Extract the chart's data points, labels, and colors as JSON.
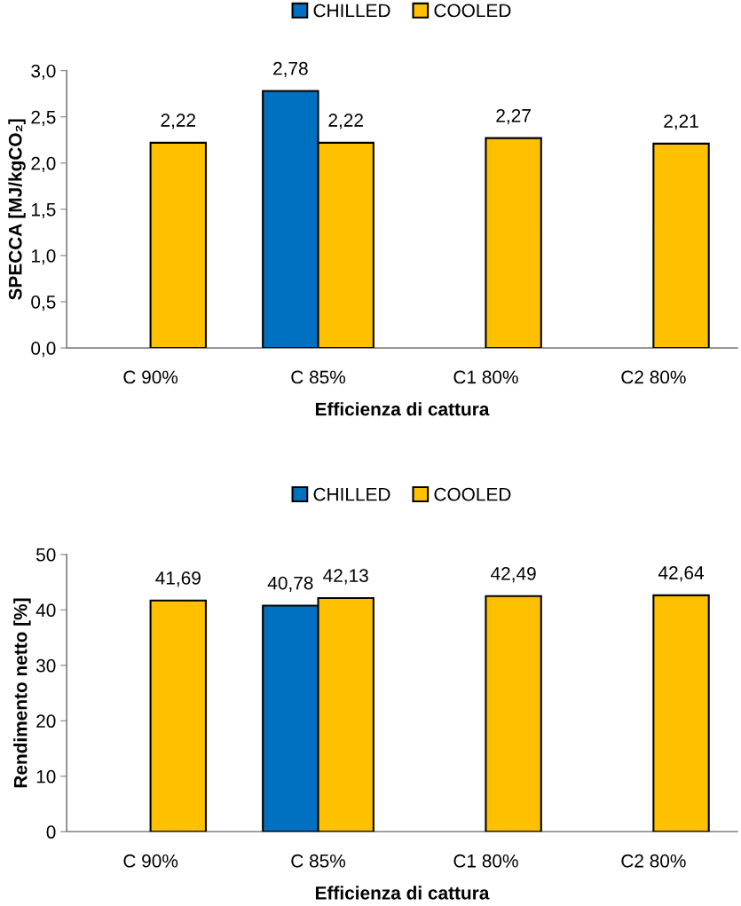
{
  "chart_data": [
    {
      "type": "bar",
      "xlabel": "Efficienza di cattura",
      "ylabel": "SPECCA [MJ/kgCO₂]",
      "categories": [
        "C 90%",
        "C 85%",
        "C1 80%",
        "C2 80%"
      ],
      "series": [
        {
          "name": "CHILLED",
          "color": "#0070c0",
          "values": [
            null,
            2.78,
            null,
            null
          ],
          "value_labels": [
            null,
            "2,78",
            null,
            null
          ]
        },
        {
          "name": "COOLED",
          "color": "#ffc000",
          "values": [
            2.22,
            2.22,
            2.27,
            2.21
          ],
          "value_labels": [
            "2,22",
            "2,22",
            "2,27",
            "2,21"
          ]
        }
      ],
      "ylim": [
        0,
        3
      ],
      "yticks": [
        {
          "value": 0,
          "label": "0,0"
        },
        {
          "value": 0.5,
          "label": "0,5"
        },
        {
          "value": 1,
          "label": "1,0"
        },
        {
          "value": 1.5,
          "label": "1,5"
        },
        {
          "value": 2,
          "label": "2,0"
        },
        {
          "value": 2.5,
          "label": "2,5"
        },
        {
          "value": 3,
          "label": "3,0"
        }
      ],
      "legend": "top",
      "grid": false
    },
    {
      "type": "bar",
      "xlabel": "Efficienza di cattura",
      "ylabel": "Rendimento netto [%]",
      "categories": [
        "C 90%",
        "C 85%",
        "C1 80%",
        "C2 80%"
      ],
      "series": [
        {
          "name": "CHILLED",
          "color": "#0070c0",
          "values": [
            null,
            40.78,
            null,
            null
          ],
          "value_labels": [
            null,
            "40,78",
            null,
            null
          ]
        },
        {
          "name": "COOLED",
          "color": "#ffc000",
          "values": [
            41.69,
            42.13,
            42.49,
            42.64
          ],
          "value_labels": [
            "41,69",
            "42,13",
            "42,49",
            "42,64"
          ]
        }
      ],
      "ylim": [
        0,
        50
      ],
      "yticks": [
        0,
        10,
        20,
        30,
        40,
        50
      ],
      "legend": "top",
      "grid": false
    }
  ]
}
